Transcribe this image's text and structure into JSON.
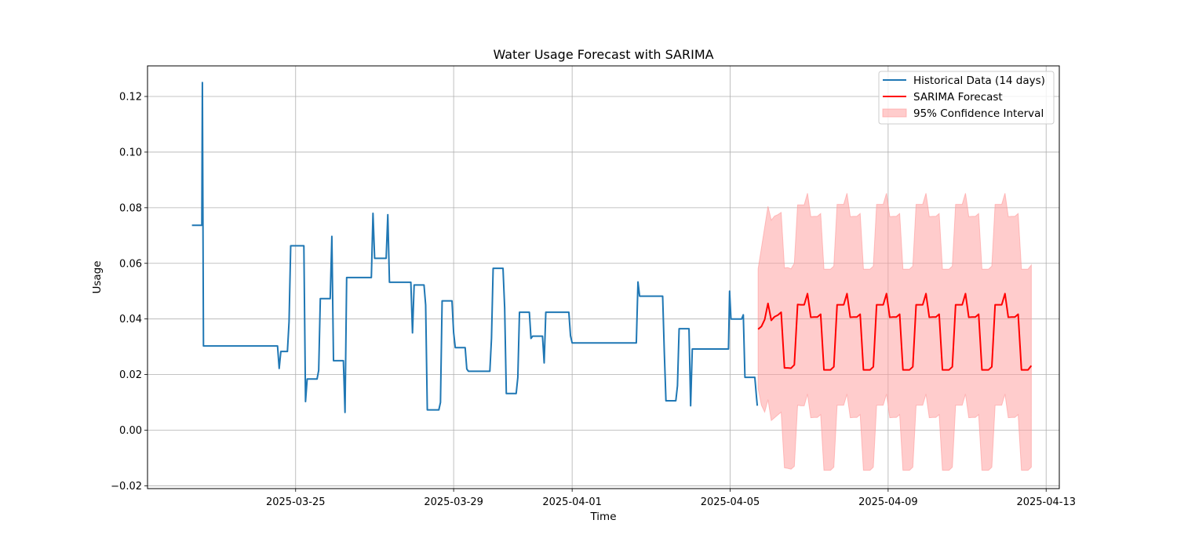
{
  "chart_data": {
    "type": "line",
    "title": "Water Usage Forecast with SARIMA",
    "xlabel": "Time",
    "ylabel": "Usage",
    "x_axis_type": "date",
    "xlim": [
      "2025-03-21T06:00",
      "2025-04-13T08:00"
    ],
    "ylim": [
      -0.021,
      0.131
    ],
    "x_ticks": [
      "2025-03-25",
      "2025-03-29",
      "2025-04-01",
      "2025-04-05",
      "2025-04-09",
      "2025-04-13"
    ],
    "y_ticks": [
      -0.02,
      0.0,
      0.02,
      0.04,
      0.06,
      0.08,
      0.1,
      0.12
    ],
    "y_tick_labels": [
      "−0.02",
      "0.00",
      "0.02",
      "0.04",
      "0.06",
      "0.08",
      "0.10",
      "0.12"
    ],
    "grid": true,
    "legend_position": "top-right",
    "legend": [
      "Historical Data (14 days)",
      "SARIMA Forecast",
      "95% Confidence Interval"
    ],
    "colors": {
      "historical": "#1f77b4",
      "forecast": "#ff0000",
      "ci_fill": "#ff9999",
      "grid": "#b0b0b0"
    },
    "series": [
      {
        "name": "Historical Data (14 days)",
        "points": [
          [
            "2025-03-22T09:00",
            0.0737
          ],
          [
            "2025-03-22T15:00",
            0.0737
          ],
          [
            "2025-03-22T15:20",
            0.125
          ],
          [
            "2025-03-22T16:00",
            0.0303
          ],
          [
            "2025-03-24T13:00",
            0.0303
          ],
          [
            "2025-03-24T14:00",
            0.0222
          ],
          [
            "2025-03-24T15:00",
            0.0283
          ],
          [
            "2025-03-24T19:00",
            0.0283
          ],
          [
            "2025-03-24T20:00",
            0.039
          ],
          [
            "2025-03-24T21:00",
            0.0663
          ],
          [
            "2025-03-25T05:00",
            0.0663
          ],
          [
            "2025-03-25T06:00",
            0.0103
          ],
          [
            "2025-03-25T07:00",
            0.0184
          ],
          [
            "2025-03-25T13:00",
            0.0184
          ],
          [
            "2025-03-25T14:00",
            0.0215
          ],
          [
            "2025-03-25T15:00",
            0.0473
          ],
          [
            "2025-03-25T21:00",
            0.0473
          ],
          [
            "2025-03-25T22:00",
            0.0697
          ],
          [
            "2025-03-25T23:00",
            0.025
          ],
          [
            "2025-03-26T05:00",
            0.025
          ],
          [
            "2025-03-26T06:00",
            0.0064
          ],
          [
            "2025-03-26T07:00",
            0.0549
          ],
          [
            "2025-03-26T22:00",
            0.0549
          ],
          [
            "2025-03-26T23:00",
            0.078
          ],
          [
            "2025-03-27T00:00",
            0.0618
          ],
          [
            "2025-03-27T07:00",
            0.0618
          ],
          [
            "2025-03-27T08:00",
            0.0775
          ],
          [
            "2025-03-27T09:00",
            0.0532
          ],
          [
            "2025-03-27T22:00",
            0.0532
          ],
          [
            "2025-03-27T23:00",
            0.035
          ],
          [
            "2025-03-28T00:00",
            0.0522
          ],
          [
            "2025-03-28T06:00",
            0.0522
          ],
          [
            "2025-03-28T07:00",
            0.045
          ],
          [
            "2025-03-28T08:00",
            0.0073
          ],
          [
            "2025-03-28T15:00",
            0.0073
          ],
          [
            "2025-03-28T16:00",
            0.01
          ],
          [
            "2025-03-28T17:00",
            0.0465
          ],
          [
            "2025-03-28T23:00",
            0.0465
          ],
          [
            "2025-03-29T00:00",
            0.035
          ],
          [
            "2025-03-29T01:00",
            0.0297
          ],
          [
            "2025-03-29T07:00",
            0.0297
          ],
          [
            "2025-03-29T08:00",
            0.022
          ],
          [
            "2025-03-29T09:00",
            0.0212
          ],
          [
            "2025-03-29T22:00",
            0.0212
          ],
          [
            "2025-03-29T23:00",
            0.033
          ],
          [
            "2025-03-30T00:00",
            0.0582
          ],
          [
            "2025-03-30T06:00",
            0.0582
          ],
          [
            "2025-03-30T07:00",
            0.044
          ],
          [
            "2025-03-30T08:00",
            0.0132
          ],
          [
            "2025-03-30T14:00",
            0.0132
          ],
          [
            "2025-03-30T15:00",
            0.019
          ],
          [
            "2025-03-30T16:00",
            0.0424
          ],
          [
            "2025-03-30T22:00",
            0.0424
          ],
          [
            "2025-03-30T23:00",
            0.033
          ],
          [
            "2025-03-31T00:00",
            0.0338
          ],
          [
            "2025-03-31T06:00",
            0.0338
          ],
          [
            "2025-03-31T07:00",
            0.0242
          ],
          [
            "2025-03-31T08:00",
            0.0424
          ],
          [
            "2025-03-31T22:00",
            0.0424
          ],
          [
            "2025-03-31T23:00",
            0.034
          ],
          [
            "2025-04-01T00:00",
            0.0314
          ],
          [
            "2025-04-02T15:00",
            0.0314
          ],
          [
            "2025-04-02T16:00",
            0.0533
          ],
          [
            "2025-04-02T17:00",
            0.0482
          ],
          [
            "2025-04-03T07:00",
            0.0482
          ],
          [
            "2025-04-03T08:00",
            0.028
          ],
          [
            "2025-04-03T09:00",
            0.0106
          ],
          [
            "2025-04-03T15:00",
            0.0106
          ],
          [
            "2025-04-03T16:00",
            0.016
          ],
          [
            "2025-04-03T17:00",
            0.0365
          ],
          [
            "2025-04-03T23:00",
            0.0365
          ],
          [
            "2025-04-04T00:00",
            0.0088
          ],
          [
            "2025-04-04T01:00",
            0.0292
          ],
          [
            "2025-04-04T23:00",
            0.0292
          ],
          [
            "2025-04-04T23:40",
            0.05
          ],
          [
            "2025-04-05T00:30",
            0.04
          ],
          [
            "2025-04-05T07:00",
            0.04
          ],
          [
            "2025-04-05T08:00",
            0.0415
          ],
          [
            "2025-04-05T09:00",
            0.019
          ],
          [
            "2025-04-05T15:00",
            0.019
          ],
          [
            "2025-04-05T16:00",
            0.012
          ],
          [
            "2025-04-05T16:30",
            0.0088
          ]
        ]
      },
      {
        "name": "SARIMA Forecast",
        "start": "2025-04-05T17:00",
        "step_hours": 2,
        "values": [
          0.0363,
          0.0373,
          0.0398,
          0.0456,
          0.0395,
          0.0408,
          0.0414,
          0.0424,
          0.0224,
          0.0224,
          0.0223,
          0.0235,
          0.0452,
          0.0451,
          0.0451,
          0.0491,
          0.0406,
          0.0407,
          0.0407,
          0.0417,
          0.0217,
          0.0217,
          0.0217,
          0.0228,
          0.0451,
          0.0451,
          0.0451,
          0.0491,
          0.0406,
          0.0407,
          0.0407,
          0.0417,
          0.0217,
          0.0217,
          0.0217,
          0.0228,
          0.0451,
          0.0451,
          0.0451,
          0.0491,
          0.0406,
          0.0407,
          0.0407,
          0.0417,
          0.0217,
          0.0217,
          0.0217,
          0.0228,
          0.0451,
          0.0451,
          0.0451,
          0.0491,
          0.0406,
          0.0407,
          0.0407,
          0.0417,
          0.0217,
          0.0217,
          0.0217,
          0.0228,
          0.0451,
          0.0451,
          0.0451,
          0.0491,
          0.0406,
          0.0407,
          0.0407,
          0.0417,
          0.0217,
          0.0217,
          0.0217,
          0.0228,
          0.0451,
          0.0451,
          0.0451,
          0.0491,
          0.0406,
          0.0407,
          0.0407,
          0.0417,
          0.0217,
          0.0217,
          0.0217,
          0.0232
        ],
        "ci_lower": [
          0.015,
          0.009,
          0.0065,
          0.011,
          0.0035,
          0.0045,
          0.0055,
          0.0065,
          -0.0135,
          -0.0137,
          -0.014,
          -0.013,
          0.009,
          0.0088,
          0.0088,
          0.013,
          0.0045,
          0.0046,
          0.0046,
          0.0056,
          -0.0144,
          -0.0144,
          -0.0144,
          -0.0133,
          0.009,
          0.009,
          0.009,
          0.013,
          0.0045,
          0.0046,
          0.0046,
          0.0056,
          -0.0144,
          -0.0144,
          -0.0144,
          -0.0133,
          0.009,
          0.009,
          0.009,
          0.013,
          0.0045,
          0.0046,
          0.0046,
          0.0056,
          -0.0144,
          -0.0144,
          -0.0144,
          -0.0133,
          0.009,
          0.009,
          0.009,
          0.013,
          0.0045,
          0.0046,
          0.0046,
          0.0056,
          -0.0144,
          -0.0144,
          -0.0144,
          -0.0133,
          0.009,
          0.009,
          0.009,
          0.013,
          0.0045,
          0.0046,
          0.0046,
          0.0056,
          -0.0144,
          -0.0144,
          -0.0144,
          -0.0133,
          0.009,
          0.009,
          0.009,
          0.013,
          0.0045,
          0.0046,
          0.0046,
          0.0056,
          -0.0144,
          -0.0144,
          -0.0144,
          -0.0133
        ],
        "ci_upper": [
          0.058,
          0.0655,
          0.073,
          0.0805,
          0.0755,
          0.077,
          0.0775,
          0.0783,
          0.0583,
          0.0585,
          0.058,
          0.06,
          0.081,
          0.081,
          0.081,
          0.0852,
          0.0768,
          0.0769,
          0.0769,
          0.0779,
          0.0579,
          0.0579,
          0.0579,
          0.059,
          0.0812,
          0.0812,
          0.0812,
          0.0852,
          0.0768,
          0.0769,
          0.0769,
          0.0779,
          0.0579,
          0.0579,
          0.0579,
          0.059,
          0.0812,
          0.0812,
          0.0812,
          0.0852,
          0.0768,
          0.0769,
          0.0769,
          0.0779,
          0.0579,
          0.0579,
          0.0579,
          0.059,
          0.0812,
          0.0812,
          0.0812,
          0.0852,
          0.0768,
          0.0769,
          0.0769,
          0.0779,
          0.0579,
          0.0579,
          0.0579,
          0.059,
          0.0812,
          0.0812,
          0.0812,
          0.0852,
          0.0768,
          0.0769,
          0.0769,
          0.0779,
          0.0579,
          0.0579,
          0.0579,
          0.059,
          0.0812,
          0.0812,
          0.0812,
          0.0852,
          0.0768,
          0.0769,
          0.0769,
          0.0779,
          0.0579,
          0.0579,
          0.0579,
          0.0594
        ]
      }
    ]
  }
}
